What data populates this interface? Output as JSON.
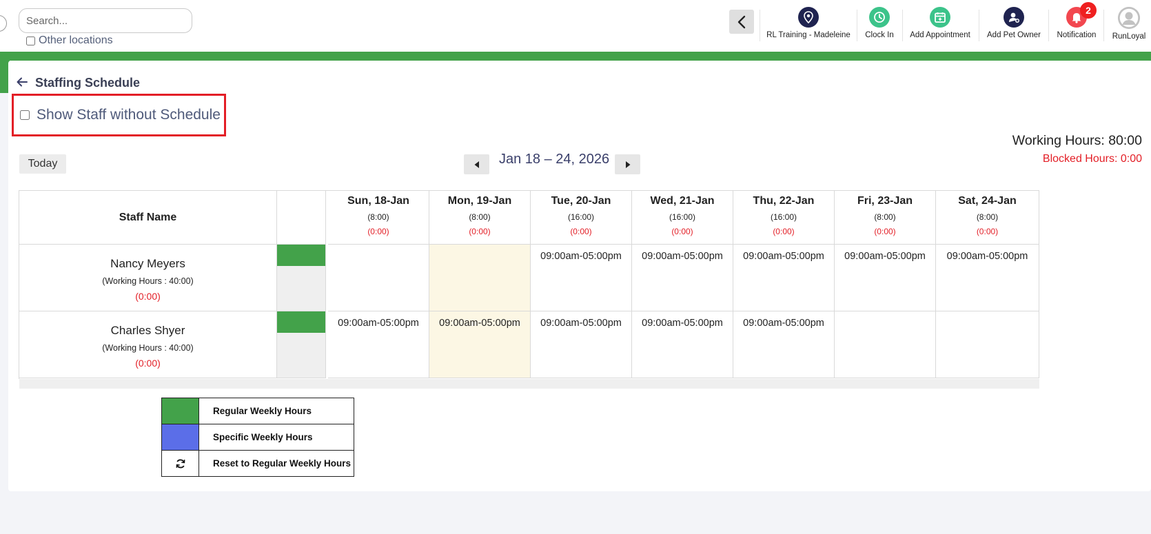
{
  "topbar": {
    "search_placeholder": "Search...",
    "other_locations_label": "Other locations",
    "nav": [
      {
        "label": "RL Training - Madeleine",
        "icon": "location-pin-icon",
        "color": "#1f2350"
      },
      {
        "label": "Clock In",
        "icon": "clock-icon",
        "color": "#3cc38a"
      },
      {
        "label": "Add Appointment",
        "icon": "calendar-add-icon",
        "color": "#3cc38a"
      },
      {
        "label": "Add Pet Owner",
        "icon": "user-add-icon",
        "color": "#1f2350"
      },
      {
        "label": "Notification",
        "icon": "bell-icon",
        "color": "#f2474f",
        "badge": "2"
      },
      {
        "label": "RunLoyal",
        "icon": "avatar-icon",
        "color": "#b8b8b8"
      }
    ]
  },
  "page": {
    "title": "Staffing Schedule",
    "show_staff_label": "Show Staff without Schedule",
    "working_hours": "Working Hours: 80:00",
    "blocked_hours": "Blocked Hours: 0:00",
    "today_label": "Today",
    "date_range": "Jan 18 – 24, 2026"
  },
  "table": {
    "staff_header": "Staff Name",
    "days": [
      {
        "day": "Sun, 18-Jan",
        "hours": "(8:00)",
        "blocked": "(0:00)"
      },
      {
        "day": "Mon, 19-Jan",
        "hours": "(8:00)",
        "blocked": "(0:00)"
      },
      {
        "day": "Tue, 20-Jan",
        "hours": "(16:00)",
        "blocked": "(0:00)"
      },
      {
        "day": "Wed, 21-Jan",
        "hours": "(16:00)",
        "blocked": "(0:00)"
      },
      {
        "day": "Thu, 22-Jan",
        "hours": "(16:00)",
        "blocked": "(0:00)"
      },
      {
        "day": "Fri, 23-Jan",
        "hours": "(8:00)",
        "blocked": "(0:00)"
      },
      {
        "day": "Sat, 24-Jan",
        "hours": "(8:00)",
        "blocked": "(0:00)"
      }
    ],
    "staff": [
      {
        "name": "Nancy Meyers",
        "working_hours": "(Working Hours : 40:00)",
        "blocked": "(0:00)",
        "shifts": [
          "",
          "",
          "09:00am-05:00pm",
          "09:00am-05:00pm",
          "09:00am-05:00pm",
          "09:00am-05:00pm",
          "09:00am-05:00pm"
        ]
      },
      {
        "name": "Charles Shyer",
        "working_hours": "(Working Hours : 40:00)",
        "blocked": "(0:00)",
        "shifts": [
          "09:00am-05:00pm",
          "09:00am-05:00pm",
          "09:00am-05:00pm",
          "09:00am-05:00pm",
          "09:00am-05:00pm",
          "",
          ""
        ]
      }
    ],
    "colors": {
      "regular": "#43a24a",
      "specific": "#5b6ee8",
      "today_bg": "#fcf7e4",
      "blocked_red": "#e31e26"
    }
  },
  "legend": [
    {
      "label": "Regular Weekly Hours",
      "swatch": "#43a24a"
    },
    {
      "label": "Specific Weekly Hours",
      "swatch": "#5b6ee8"
    },
    {
      "label": "Reset to Regular Weekly Hours",
      "icon": "refresh-icon"
    }
  ]
}
